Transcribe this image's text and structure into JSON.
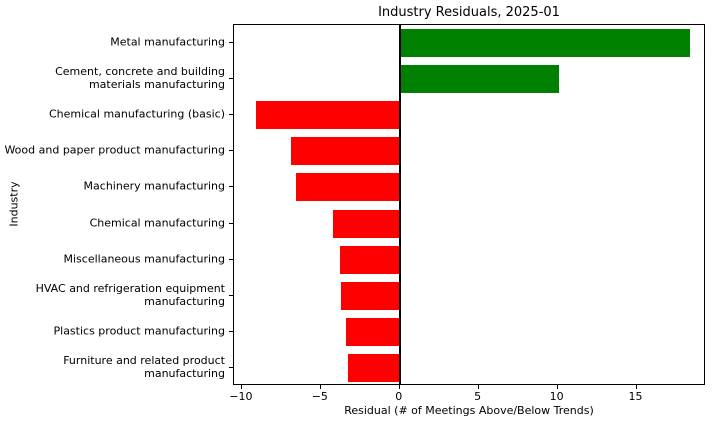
{
  "chart_data": {
    "type": "bar",
    "orientation": "horizontal",
    "title": "Industry Residuals, 2025-01",
    "xlabel": "Residual (# of Meetings Above/Below Trends)",
    "ylabel": "Industry",
    "categories": [
      "Metal manufacturing",
      "Cement, concrete and building materials manufacturing",
      "Chemical manufacturing (basic)",
      "Wood and paper product manufacturing",
      "Machinery manufacturing",
      "Chemical manufacturing",
      "Miscellaneous manufacturing",
      "HVAC and refrigeration equipment manufacturing",
      "Plastics product manufacturing",
      "Furniture and related product manufacturing"
    ],
    "tick_display_labels": [
      "Metal manufacturing",
      "Cement, concrete and building\nmaterials manufacturing",
      "Chemical manufacturing (basic)",
      "Wood and paper product manufacturing",
      "Machinery manufacturing",
      "Chemical manufacturing",
      "Miscellaneous manufacturing",
      "HVAC and refrigeration equipment\nmanufacturing",
      "Plastics product manufacturing",
      "Furniture and related product\nmanufacturing"
    ],
    "values": [
      18.4,
      10.1,
      -9.1,
      -6.9,
      -6.6,
      -4.2,
      -3.8,
      -3.7,
      -3.4,
      -3.3
    ],
    "xlim": [
      -10.5,
      19.4
    ],
    "x_ticks": [
      -10,
      -5,
      0,
      5,
      10,
      15
    ],
    "x_tick_labels": [
      "−10",
      "−5",
      "0",
      "5",
      "10",
      "15"
    ],
    "colors": {
      "positive": "#008000",
      "negative": "#ff0000",
      "axis": "#000000"
    },
    "grid": false,
    "legend": null
  }
}
